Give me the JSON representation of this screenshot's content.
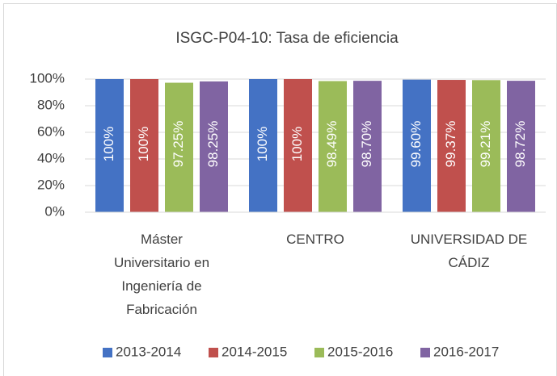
{
  "chart_data": {
    "type": "bar",
    "title": "ISGC-P04-10: Tasa de eficiencia",
    "categories": [
      "Máster Universitario en Ingeniería de Fabricación",
      "CENTRO",
      "UNIVERSIDAD DE CÁDIZ"
    ],
    "series": [
      {
        "name": "2013-2014",
        "color": "#4472c4",
        "values": [
          100,
          100,
          99.6
        ],
        "value_labels": [
          "100%",
          "100%",
          "99.60%"
        ]
      },
      {
        "name": "2014-2015",
        "color": "#c0504d",
        "values": [
          100,
          100,
          99.37
        ],
        "value_labels": [
          "100%",
          "100%",
          "99.37%"
        ]
      },
      {
        "name": "2015-2016",
        "color": "#9bbb59",
        "values": [
          97.25,
          98.49,
          99.21
        ],
        "value_labels": [
          "97.25%",
          "98.49%",
          "99.21%"
        ]
      },
      {
        "name": "2016-2017",
        "color": "#8064a2",
        "values": [
          98.25,
          98.7,
          98.72
        ],
        "value_labels": [
          "98.25%",
          "98.70%",
          "98.72%"
        ]
      }
    ],
    "ylim": [
      0,
      100
    ],
    "yticks": [
      {
        "value": 0,
        "label": "0%"
      },
      {
        "value": 20,
        "label": "20%"
      },
      {
        "value": 40,
        "label": "40%"
      },
      {
        "value": 60,
        "label": "60%"
      },
      {
        "value": 80,
        "label": "80%"
      },
      {
        "value": 100,
        "label": "100%"
      }
    ],
    "grid": true,
    "legend": "bottom"
  }
}
